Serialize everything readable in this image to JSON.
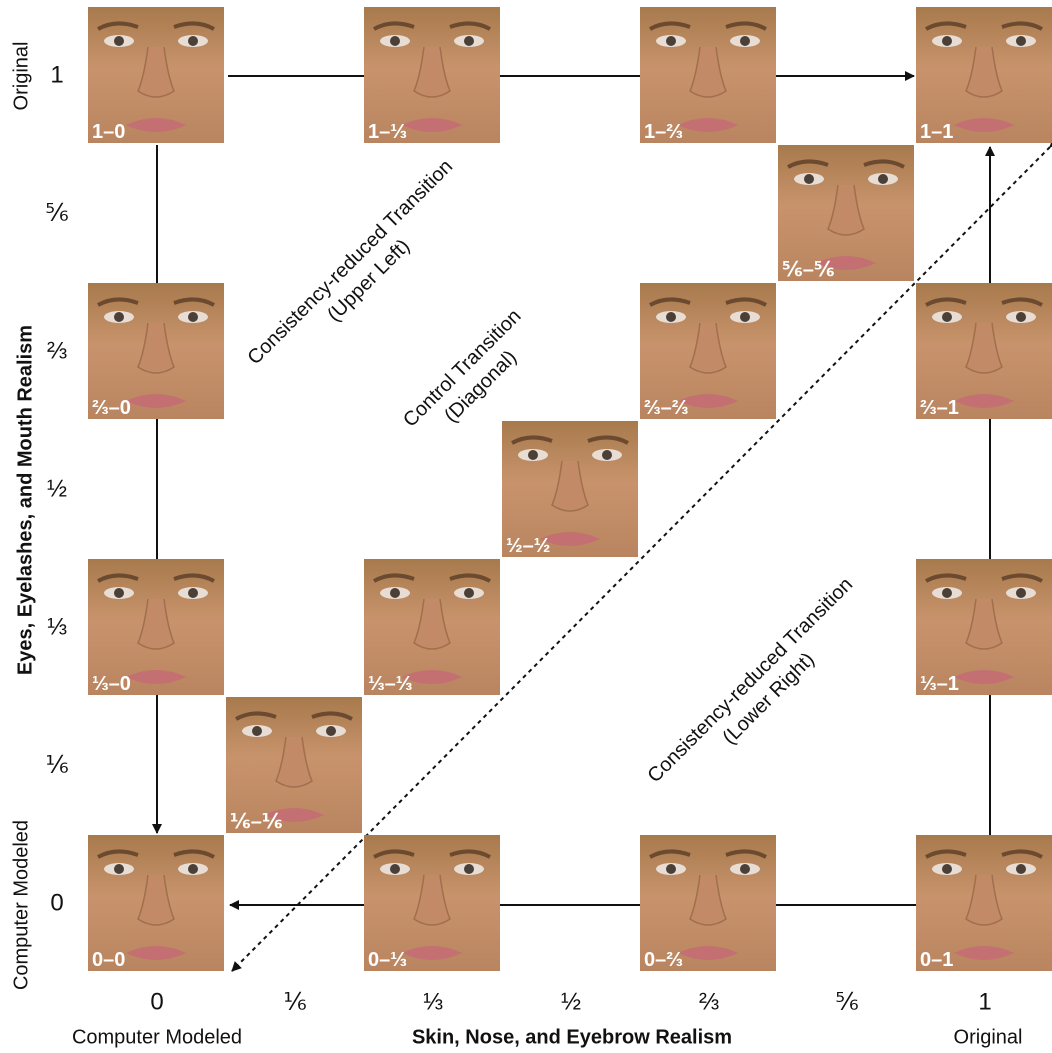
{
  "y_axis": {
    "title": "Eyes, Eyelashes, and Mouth Realism",
    "low_label": "Computer Modeled",
    "high_label": "Original",
    "ticks": [
      "1",
      "⅚",
      "⅔",
      "½",
      "⅓",
      "⅙",
      "0"
    ]
  },
  "x_axis": {
    "title": "Skin, Nose, and Eyebrow Realism",
    "low_label": "Computer Modeled",
    "high_label": "Original",
    "ticks": [
      "0",
      "⅙",
      "⅓",
      "½",
      "⅔",
      "⅚",
      "1"
    ]
  },
  "annotations": {
    "upper_left": [
      "Consistency-reduced Transition",
      "(Upper Left)"
    ],
    "diagonal": [
      "Control Transition",
      "(Diagonal)"
    ],
    "lower_right": [
      "Consistency-reduced Transition",
      "(Lower Right)"
    ]
  },
  "tiles": [
    {
      "label": "1–0"
    },
    {
      "label": "1–⅓"
    },
    {
      "label": "1–⅔"
    },
    {
      "label": "1–1"
    },
    {
      "label": "⅚–⅚"
    },
    {
      "label": "⅔–0"
    },
    {
      "label": "⅔–⅔"
    },
    {
      "label": "⅔–1"
    },
    {
      "label": "½–½"
    },
    {
      "label": "⅓–0"
    },
    {
      "label": "⅓–⅓"
    },
    {
      "label": "⅓–1"
    },
    {
      "label": "⅙–⅙"
    },
    {
      "label": "0–0"
    },
    {
      "label": "0–⅓"
    },
    {
      "label": "0–⅔"
    },
    {
      "label": "0–1"
    }
  ]
}
